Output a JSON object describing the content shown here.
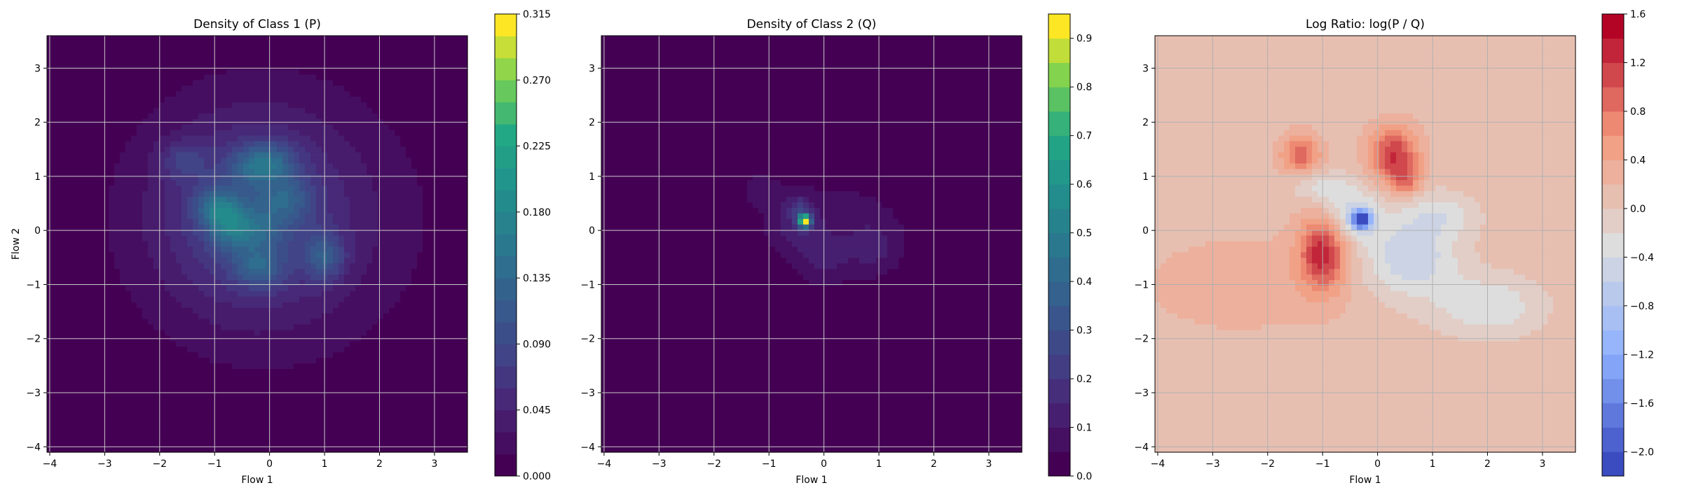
{
  "chart_data": [
    {
      "type": "heatmap",
      "title": "Density of Class 1 (P)",
      "xlabel": "Flow 1",
      "ylabel": "Flow 2",
      "xlim": [
        -4.05,
        3.6
      ],
      "ylim": [
        -4.1,
        3.6
      ],
      "xticks": [
        -4,
        -3,
        -2,
        -1,
        0,
        1,
        2,
        3
      ],
      "yticks": [
        -4,
        -3,
        -2,
        -1,
        0,
        1,
        2,
        3
      ],
      "grid": true,
      "colormap": "viridis",
      "colorbar": {
        "ticks": [
          "0.000",
          "0.045",
          "0.090",
          "0.135",
          "0.180",
          "0.225",
          "0.270",
          "0.315"
        ],
        "range": [
          0,
          0.315
        ],
        "levels": 21
      },
      "components": [
        {
          "x": 0.0,
          "y": 0.2,
          "sx": 1.8,
          "sy": 1.7,
          "w": 0.05
        },
        {
          "x": -0.4,
          "y": 0.3,
          "sx": 1.0,
          "sy": 1.1,
          "w": 0.05
        },
        {
          "x": -1.0,
          "y": 0.4,
          "sx": 0.25,
          "sy": 0.25,
          "w": 0.07
        },
        {
          "x": -0.7,
          "y": 0.1,
          "sx": 0.25,
          "sy": 0.3,
          "w": 0.07
        },
        {
          "x": -0.3,
          "y": 1.2,
          "sx": 0.3,
          "sy": 0.25,
          "w": 0.06
        },
        {
          "x": 0.1,
          "y": 1.3,
          "sx": 0.3,
          "sy": 0.25,
          "w": 0.05
        },
        {
          "x": -1.6,
          "y": 1.3,
          "sx": 0.3,
          "sy": 0.25,
          "w": 0.04
        },
        {
          "x": 1.0,
          "y": -0.5,
          "sx": 0.25,
          "sy": 0.3,
          "w": 0.07
        },
        {
          "x": -0.2,
          "y": -0.7,
          "sx": 0.3,
          "sy": 0.25,
          "w": 0.06
        },
        {
          "x": 0.3,
          "y": 0.6,
          "sx": 0.3,
          "sy": 0.3,
          "w": 0.05
        },
        {
          "x": -0.2,
          "y": 0.0,
          "sx": 0.3,
          "sy": 0.3,
          "w": 0.04
        }
      ]
    },
    {
      "type": "heatmap",
      "title": "Density of Class 2 (Q)",
      "xlabel": "Flow 1",
      "ylabel": "",
      "xlim": [
        -4.05,
        3.6
      ],
      "ylim": [
        -4.1,
        3.6
      ],
      "xticks": [
        -4,
        -3,
        -2,
        -1,
        0,
        1,
        2,
        3
      ],
      "yticks": [
        -4,
        -3,
        -2,
        -1,
        0,
        1,
        2,
        3
      ],
      "grid": true,
      "colormap": "viridis",
      "colorbar": {
        "ticks": [
          "0.0",
          "0.1",
          "0.2",
          "0.3",
          "0.4",
          "0.5",
          "0.6",
          "0.7",
          "0.8",
          "0.9"
        ],
        "range": [
          0,
          0.95
        ],
        "levels": 19
      },
      "components": [
        {
          "x": 0.3,
          "y": 0.0,
          "sx": 1.1,
          "sy": 0.9,
          "w": 0.07
        },
        {
          "x": -0.35,
          "y": 0.18,
          "sx": 0.08,
          "sy": 0.08,
          "w": 0.88
        },
        {
          "x": -0.45,
          "y": 0.45,
          "sx": 0.15,
          "sy": 0.15,
          "w": 0.12
        },
        {
          "x": -0.5,
          "y": 0.1,
          "sx": 0.3,
          "sy": 0.3,
          "w": 0.1
        },
        {
          "x": 0.9,
          "y": -0.3,
          "sx": 0.3,
          "sy": 0.3,
          "w": 0.08
        },
        {
          "x": 0.0,
          "y": -0.5,
          "sx": 0.3,
          "sy": 0.3,
          "w": 0.07
        },
        {
          "x": -1.2,
          "y": 0.8,
          "sx": 0.3,
          "sy": 0.3,
          "w": 0.05
        }
      ]
    },
    {
      "type": "heatmap",
      "title": "Log Ratio: log(P / Q)",
      "xlabel": "Flow 1",
      "ylabel": "",
      "xlim": [
        -4.05,
        3.6
      ],
      "ylim": [
        -4.1,
        3.6
      ],
      "xticks": [
        -4,
        -3,
        -2,
        -1,
        0,
        1,
        2,
        3
      ],
      "yticks": [
        -4,
        -3,
        -2,
        -1,
        0,
        1,
        2,
        3
      ],
      "grid": true,
      "colormap": "coolwarm",
      "colorbar": {
        "ticks": [
          "−2.0",
          "−1.6",
          "−1.2",
          "−0.8",
          "−0.4",
          "0.0",
          "0.4",
          "0.8",
          "1.2",
          "1.6"
        ],
        "range": [
          -2.2,
          1.6
        ],
        "levels": 19
      },
      "base": 0.12,
      "components": [
        {
          "x": -1.0,
          "y": -0.4,
          "sx": 0.3,
          "sy": 0.5,
          "w": 1.2
        },
        {
          "x": 0.3,
          "y": 1.4,
          "sx": 0.3,
          "sy": 0.35,
          "w": 1.1
        },
        {
          "x": -1.4,
          "y": 1.4,
          "sx": 0.25,
          "sy": 0.25,
          "w": 0.8
        },
        {
          "x": 0.5,
          "y": 0.9,
          "sx": 0.2,
          "sy": 0.2,
          "w": 0.6
        },
        {
          "x": -0.3,
          "y": 0.2,
          "sx": 0.12,
          "sy": 0.12,
          "w": -2.2
        },
        {
          "x": -0.5,
          "y": 0.3,
          "sx": 0.4,
          "sy": 0.35,
          "w": -0.6
        },
        {
          "x": 0.6,
          "y": -0.5,
          "sx": 0.6,
          "sy": 0.5,
          "w": -0.7
        },
        {
          "x": 2.0,
          "y": -1.4,
          "sx": 0.7,
          "sy": 0.4,
          "w": -0.5
        },
        {
          "x": 1.1,
          "y": 0.3,
          "sx": 0.5,
          "sy": 0.3,
          "w": -0.4
        },
        {
          "x": -1.0,
          "y": 0.8,
          "sx": 0.4,
          "sy": 0.2,
          "w": -0.4
        },
        {
          "x": -2.5,
          "y": -1.0,
          "sx": 1.2,
          "sy": 0.6,
          "w": 0.2
        }
      ]
    }
  ]
}
